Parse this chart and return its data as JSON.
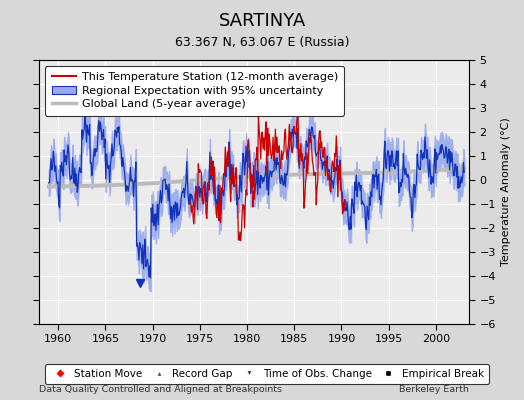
{
  "title": "SARTINYA",
  "subtitle": "63.367 N, 63.067 E (Russia)",
  "xlabel_left": "Data Quality Controlled and Aligned at Breakpoints",
  "xlabel_right": "Berkeley Earth",
  "ylabel": "Temperature Anomaly (°C)",
  "xlim": [
    1958.0,
    2003.5
  ],
  "ylim": [
    -6,
    5
  ],
  "yticks": [
    -6,
    -5,
    -4,
    -3,
    -2,
    -1,
    0,
    1,
    2,
    3,
    4,
    5
  ],
  "xticks": [
    1960,
    1965,
    1970,
    1975,
    1980,
    1985,
    1990,
    1995,
    2000
  ],
  "background_color": "#d8d8d8",
  "plot_background": "#ebebeb",
  "grid_color": "#ffffff",
  "title_fontsize": 13,
  "subtitle_fontsize": 9,
  "legend_fontsize": 8,
  "tick_fontsize": 8,
  "red_line_color": "#cc0000",
  "blue_line_color": "#1133bb",
  "blue_fill_color": "#99aaee",
  "gray_line_color": "#bbbbbb",
  "time_of_obs_x": 1968.7,
  "time_of_obs_y": -4.3
}
